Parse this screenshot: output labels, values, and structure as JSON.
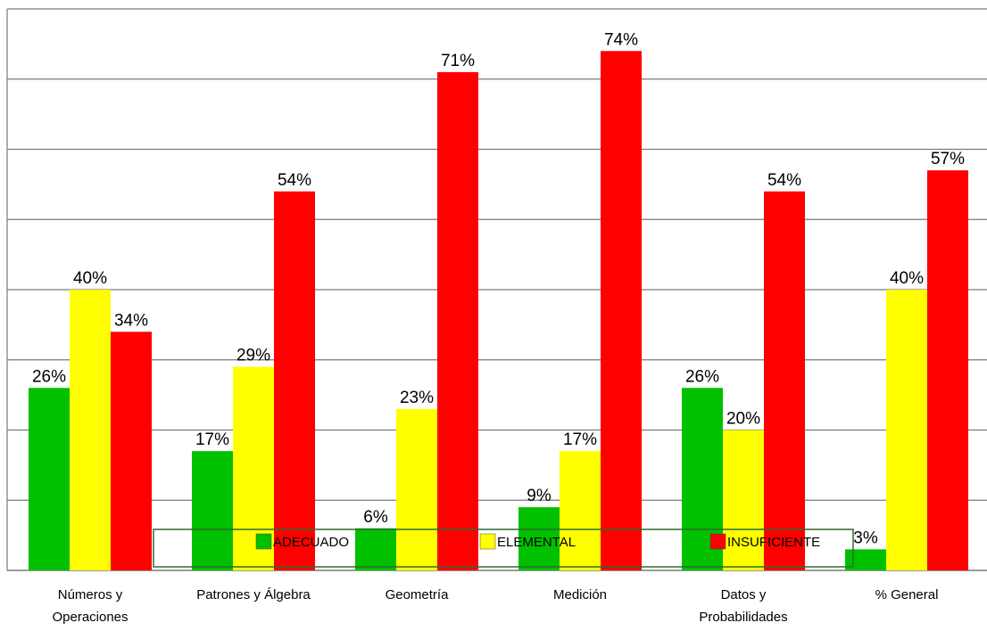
{
  "chart_data": {
    "type": "bar",
    "categories": [
      [
        "Números y",
        "Operaciones"
      ],
      [
        "Patrones y Álgebra"
      ],
      [
        "Geometría"
      ],
      [
        "Medición"
      ],
      [
        "Datos y",
        "Probabilidades"
      ],
      [
        "% General"
      ]
    ],
    "series": [
      {
        "name": "ADECUADO",
        "color": "#00c000",
        "values": [
          26,
          17,
          6,
          9,
          26,
          3
        ]
      },
      {
        "name": "ELEMENTAL",
        "color": "#ffff00",
        "values": [
          40,
          29,
          23,
          17,
          20,
          40
        ]
      },
      {
        "name": "INSUFICIENTE",
        "color": "#ff0000",
        "values": [
          34,
          54,
          71,
          74,
          54,
          57
        ]
      }
    ],
    "value_suffix": "%",
    "ylim": [
      0,
      80
    ],
    "yticks": [
      0,
      10,
      20,
      30,
      40,
      50,
      60,
      70,
      80
    ],
    "show_y_tick_labels": false,
    "grid": true,
    "legend_placement": "bottom-center (inside plot)",
    "legend_border_color": "#2e6b2e",
    "grid_color": "#7a7a7a"
  }
}
